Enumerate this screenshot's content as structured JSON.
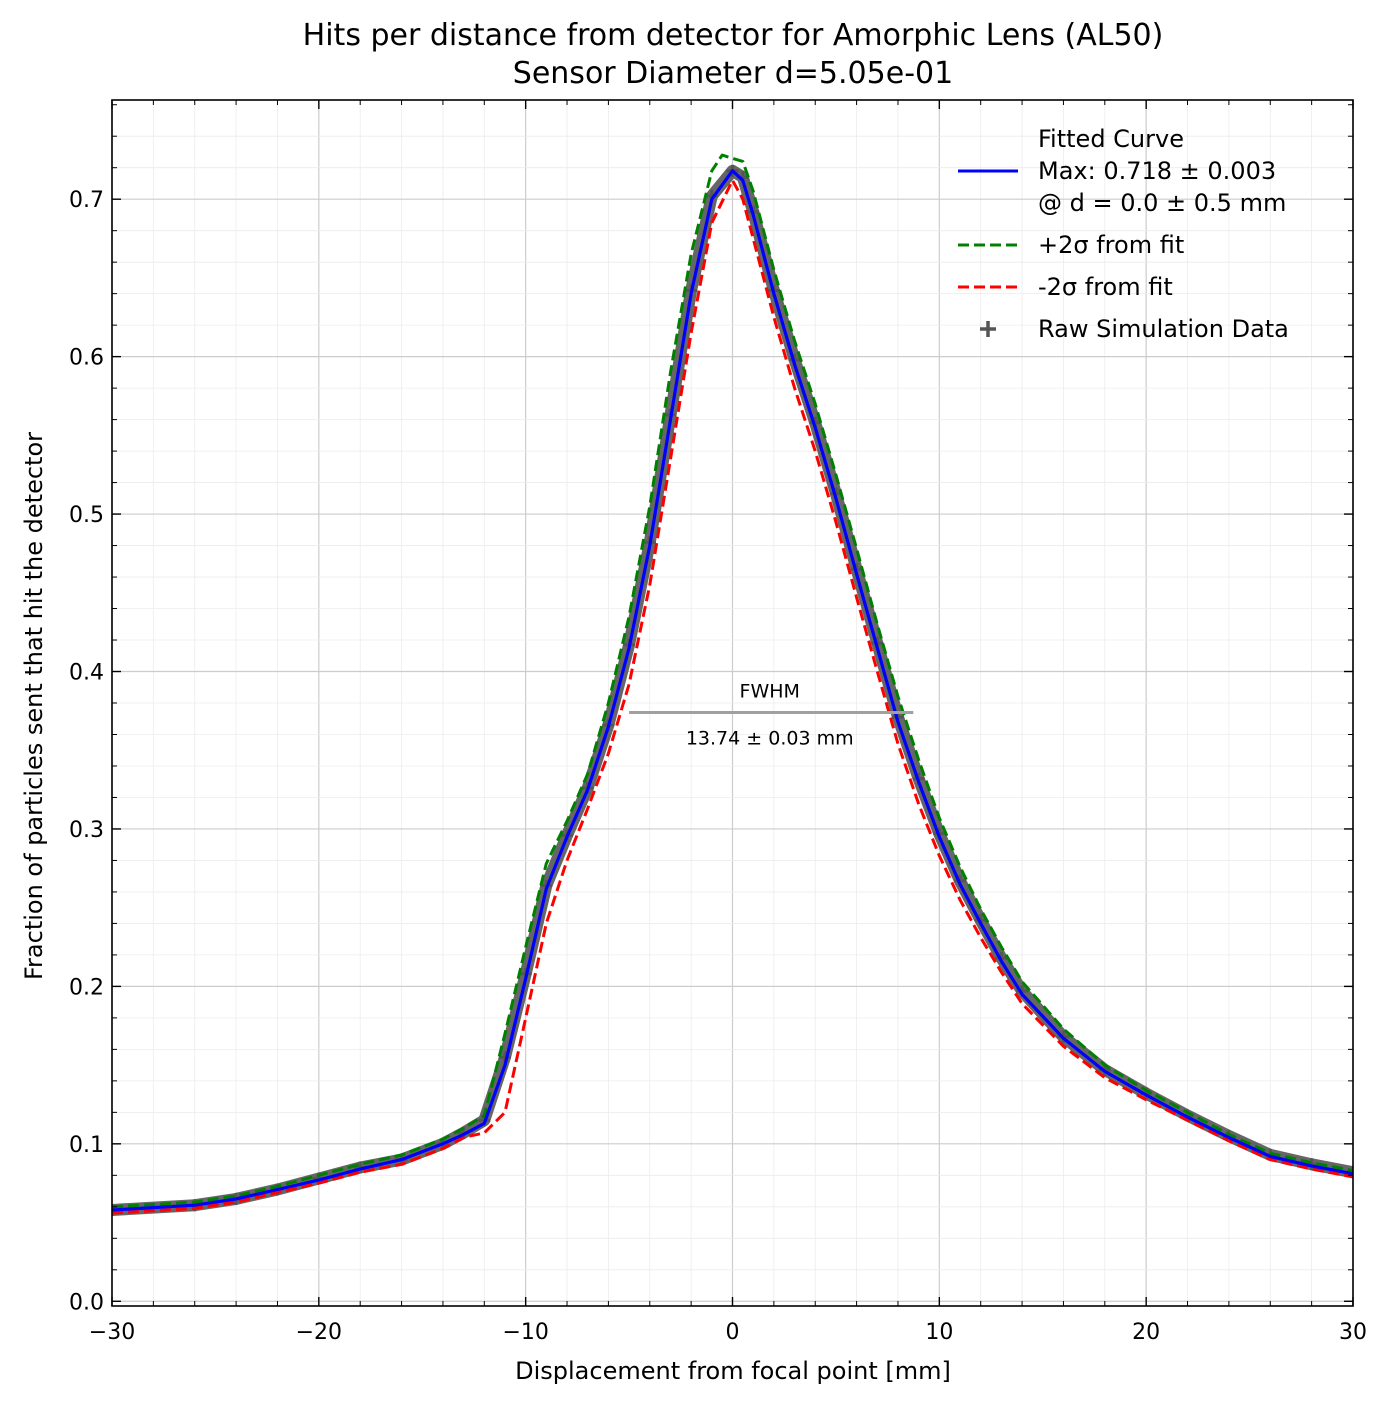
{
  "chart_data": {
    "type": "line",
    "title": "Hits per distance from detector for Amorphic Lens (AL50)",
    "subtitle": "Sensor Diameter d=5.05e-01",
    "xlabel": "Displacement from focal point [mm]",
    "ylabel": "Fraction of particles sent that hit the detector",
    "xlim": [
      -30,
      30
    ],
    "ylim": [
      -0.003,
      0.763
    ],
    "x_ticks": [
      -30,
      -20,
      -10,
      0,
      10,
      20,
      30
    ],
    "x_tick_labels": [
      "−30",
      "−20",
      "−10",
      "0",
      "10",
      "20",
      "30"
    ],
    "y_ticks": [
      0.0,
      0.1,
      0.2,
      0.3,
      0.4,
      0.5,
      0.6,
      0.7
    ],
    "y_tick_labels": [
      "0.0",
      "0.1",
      "0.2",
      "0.3",
      "0.4",
      "0.5",
      "0.6",
      "0.7"
    ],
    "grid": true,
    "legend_position": "top-right",
    "legend": [
      {
        "label_lines": [
          "Fitted Curve",
          "Max: 0.718 ± 0.003",
          "@ d = 0.0 ± 0.5 mm"
        ],
        "color": "#0000ff",
        "style": "solid"
      },
      {
        "label_lines": [
          "+2σ from fit"
        ],
        "color": "#008000",
        "style": "dashed"
      },
      {
        "label_lines": [
          "-2σ from fit"
        ],
        "color": "#ff0000",
        "style": "dashed"
      },
      {
        "label_lines": [
          "Raw Simulation Data"
        ],
        "color": "#555555",
        "style": "marker-plus"
      }
    ],
    "annotations": {
      "fwhm_label": "FWHM",
      "fwhm_value_label": "13.74 ± 0.03 mm",
      "fwhm_x_range": [
        -5.0,
        8.74
      ],
      "fwhm_y": 0.374
    },
    "series": [
      {
        "name": "Fitted Curve",
        "color": "#0000ff",
        "style": "solid",
        "x": [
          -30,
          -26,
          -24,
          -22,
          -20,
          -18,
          -16,
          -14,
          -13,
          -12,
          -11,
          -10,
          -9,
          -8,
          -7,
          -6,
          -5,
          -4,
          -3,
          -2,
          -1,
          0,
          0.5,
          1,
          2,
          3,
          4,
          5,
          6,
          7,
          8,
          9,
          10,
          11,
          12,
          13,
          14,
          16,
          18,
          20,
          22,
          24,
          26,
          28,
          30
        ],
        "y": [
          0.058,
          0.061,
          0.065,
          0.071,
          0.077,
          0.084,
          0.09,
          0.1,
          0.106,
          0.113,
          0.15,
          0.205,
          0.262,
          0.295,
          0.325,
          0.365,
          0.415,
          0.48,
          0.56,
          0.64,
          0.7,
          0.718,
          0.712,
          0.69,
          0.64,
          0.595,
          0.555,
          0.51,
          0.462,
          0.415,
          0.368,
          0.33,
          0.295,
          0.265,
          0.24,
          0.216,
          0.195,
          0.167,
          0.146,
          0.131,
          0.117,
          0.104,
          0.092,
          0.086,
          0.081
        ]
      },
      {
        "name": "+2σ from fit",
        "color": "#008000",
        "style": "dashed",
        "x": [
          -30,
          -26,
          -24,
          -22,
          -20,
          -18,
          -16,
          -14,
          -13,
          -12,
          -11,
          -10,
          -9,
          -8,
          -7,
          -6,
          -5,
          -4,
          -3,
          -2,
          -1,
          -0.5,
          0,
          0.5,
          1,
          2,
          3,
          4,
          5,
          6,
          7,
          8,
          9,
          10,
          11,
          12,
          13,
          14,
          16,
          18,
          20,
          22,
          24,
          26,
          28,
          30
        ],
        "y": [
          0.06,
          0.063,
          0.067,
          0.073,
          0.08,
          0.087,
          0.093,
          0.103,
          0.11,
          0.118,
          0.17,
          0.225,
          0.278,
          0.305,
          0.335,
          0.38,
          0.435,
          0.505,
          0.59,
          0.665,
          0.718,
          0.728,
          0.726,
          0.724,
          0.705,
          0.655,
          0.61,
          0.57,
          0.525,
          0.478,
          0.43,
          0.384,
          0.344,
          0.307,
          0.276,
          0.249,
          0.225,
          0.203,
          0.173,
          0.15,
          0.134,
          0.12,
          0.106,
          0.094,
          0.088,
          0.083
        ]
      },
      {
        "name": "-2σ from fit",
        "color": "#ff0000",
        "style": "dashed",
        "x": [
          -30,
          -26,
          -24,
          -22,
          -20,
          -18,
          -16,
          -14,
          -13,
          -12,
          -11,
          -10,
          -9,
          -8,
          -7,
          -6,
          -5,
          -4,
          -3,
          -2,
          -1,
          0,
          0.5,
          1,
          2,
          3,
          4,
          5,
          6,
          7,
          8,
          9,
          10,
          11,
          12,
          13,
          14,
          16,
          18,
          20,
          22,
          24,
          26,
          28,
          30
        ],
        "y": [
          0.056,
          0.059,
          0.063,
          0.069,
          0.075,
          0.082,
          0.087,
          0.097,
          0.104,
          0.107,
          0.12,
          0.18,
          0.24,
          0.28,
          0.313,
          0.348,
          0.392,
          0.455,
          0.535,
          0.615,
          0.685,
          0.712,
          0.7,
          0.675,
          0.625,
          0.58,
          0.54,
          0.495,
          0.447,
          0.4,
          0.354,
          0.316,
          0.283,
          0.255,
          0.231,
          0.209,
          0.189,
          0.162,
          0.142,
          0.128,
          0.115,
          0.102,
          0.09,
          0.084,
          0.079
        ]
      },
      {
        "name": "Raw Simulation Data",
        "color": "#555555",
        "style": "marker-plus",
        "x": [
          -30,
          -26,
          -24,
          -22,
          -20,
          -18,
          -16,
          -14,
          -13,
          -12,
          -11,
          -10,
          -9,
          -8,
          -7,
          -6,
          -5,
          -4,
          -3,
          -2,
          -1,
          0,
          0.5,
          1,
          2,
          3,
          4,
          5,
          6,
          7,
          8,
          9,
          10,
          11,
          12,
          13,
          14,
          16,
          18,
          20,
          22,
          24,
          26,
          28,
          30
        ],
        "y": [
          0.058,
          0.061,
          0.065,
          0.071,
          0.078,
          0.085,
          0.09,
          0.1,
          0.107,
          0.115,
          0.155,
          0.208,
          0.264,
          0.296,
          0.326,
          0.366,
          0.417,
          0.482,
          0.563,
          0.642,
          0.702,
          0.718,
          0.714,
          0.692,
          0.642,
          0.598,
          0.558,
          0.513,
          0.465,
          0.418,
          0.371,
          0.332,
          0.297,
          0.267,
          0.242,
          0.218,
          0.197,
          0.168,
          0.147,
          0.132,
          0.118,
          0.105,
          0.093,
          0.087,
          0.082
        ]
      }
    ]
  }
}
